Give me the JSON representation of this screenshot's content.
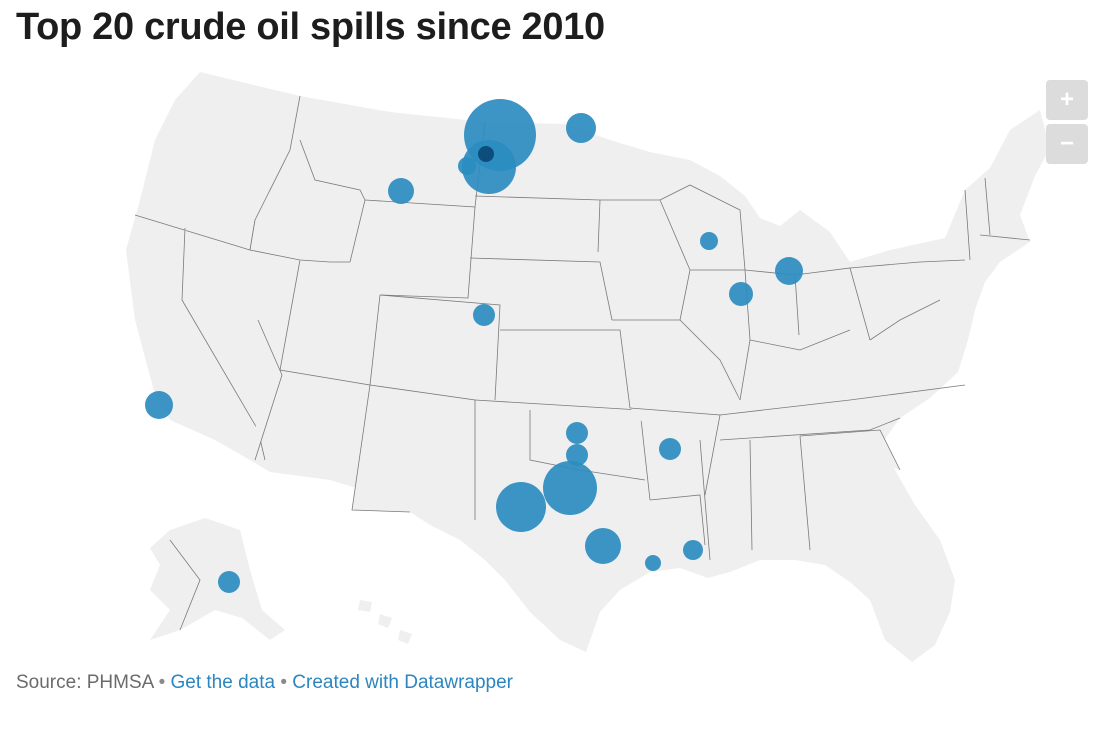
{
  "title": "Top 20 crude oil spills since 2010",
  "controls": {
    "zoom_in": "+",
    "zoom_out": "−"
  },
  "footer": {
    "source": "Source: PHMSA",
    "separator": "•",
    "get_data": "Get the data",
    "created_with": "Created with Datawrapper"
  },
  "colors": {
    "marker": "#2b8cc0",
    "marker_dark": "#0b4a78",
    "land": "#efefef",
    "border": "#7a7a7a",
    "link": "#2b86c0"
  },
  "spills": [
    {
      "near": "ND-MT border, north",
      "size_rank": 1,
      "lat": 48.6,
      "lon": -103.8
    },
    {
      "near": "Williston, ND",
      "size_rank": 3,
      "lat": 47.9,
      "lon": -103.9
    },
    {
      "near": "NW North Dakota",
      "size_rank": 16,
      "lat": 48.2,
      "lon": -103.9
    },
    {
      "near": "NE Montana",
      "size_rank": 17,
      "lat": 47.8,
      "lon": -104.5
    },
    {
      "near": "NE North Dakota",
      "size_rank": 11,
      "lat": 48.5,
      "lon": -98.5
    },
    {
      "near": "Billings, MT",
      "size_rank": 12,
      "lat": 45.8,
      "lon": -108.5
    },
    {
      "near": "Wisconsin",
      "size_rank": 19,
      "lat": 43.9,
      "lon": -89.1
    },
    {
      "near": "Marshall, MI",
      "size_rank": 10,
      "lat": 42.3,
      "lon": -85.0
    },
    {
      "near": "Illinois",
      "size_rank": 13,
      "lat": 41.5,
      "lon": -87.4
    },
    {
      "near": "NE Colorado",
      "size_rank": 18,
      "lat": 40.4,
      "lon": -104.0
    },
    {
      "near": "Santa Barbara, CA",
      "size_rank": 9,
      "lat": 34.4,
      "lon": -120.0
    },
    {
      "near": "Cushing, OK",
      "size_rank": 15,
      "lat": 35.9,
      "lon": -97.2
    },
    {
      "near": "Oklahoma",
      "size_rank": 14,
      "lat": 34.9,
      "lon": -97.2
    },
    {
      "near": "Mayflower, AR",
      "size_rank": 14,
      "lat": 35.0,
      "lon": -92.4
    },
    {
      "near": "North Texas",
      "size_rank": 2,
      "lat": 33.2,
      "lon": -96.6
    },
    {
      "near": "West Texas",
      "size_rank": 4,
      "lat": 31.6,
      "lon": -99.9
    },
    {
      "near": "SE Texas",
      "size_rank": 6,
      "lat": 30.2,
      "lon": -95.8
    },
    {
      "near": "Louisiana",
      "size_rank": 15,
      "lat": 30.3,
      "lon": -91.0
    },
    {
      "near": "SE Texas coast",
      "size_rank": 20,
      "lat": 29.8,
      "lon": -93.8
    },
    {
      "near": "Alaska",
      "size_rank": 12,
      "lat": 61.0,
      "lon": -150.0
    }
  ]
}
